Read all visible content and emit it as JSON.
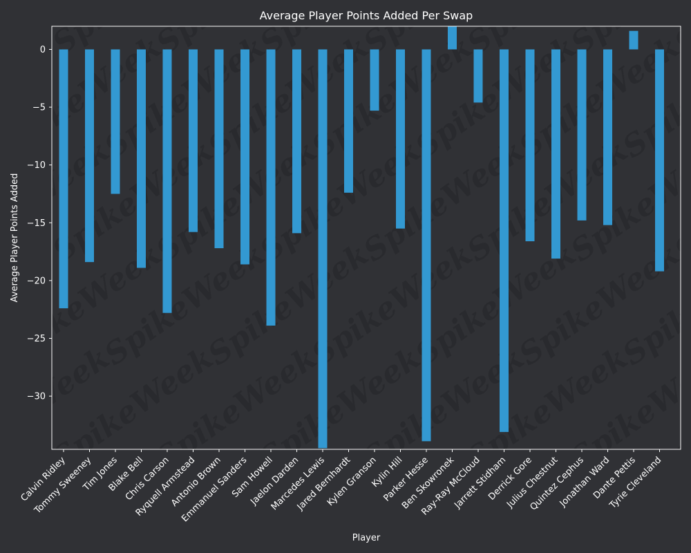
{
  "chart_data": {
    "type": "bar",
    "title": "Average Player Points Added Per Swap",
    "xlabel": "Player",
    "ylabel": "Average Player Points Added",
    "categories": [
      "Calvin Ridley",
      "Tommy Sweeney",
      "Tim Jones",
      "Blake Bell",
      "Chris Carson",
      "Ryquell Armstead",
      "Antonio Brown",
      "Emmanuel Sanders",
      "Sam Howell",
      "Jaelon Darden",
      "Marcedes Lewis",
      "Jared Bernhardt",
      "Kylen Granson",
      "Kylin Hill",
      "Parker Hesse",
      "Ben Skowronek",
      "Ray-Ray McCloud",
      "Jarrett Stidham",
      "Derrick Gore",
      "Julius Chestnut",
      "Quintez Cephus",
      "Jonathan Ward",
      "Dante Pettis",
      "Tyrie Cleveland"
    ],
    "values": [
      -22.4,
      -18.4,
      -12.5,
      -18.9,
      -22.8,
      -15.8,
      -17.2,
      -18.6,
      -23.9,
      -15.9,
      -34.5,
      -12.4,
      -5.3,
      -15.5,
      -33.9,
      2.0,
      -4.6,
      -33.1,
      -16.6,
      -18.1,
      -14.8,
      -15.2,
      1.6,
      -19.2
    ],
    "ylim": [
      -34.6,
      2.0
    ],
    "yticks": [
      0,
      -5,
      -10,
      -15,
      -20,
      -25,
      -30
    ],
    "ytick_labels": [
      "0",
      "−5",
      "−10",
      "−15",
      "−20",
      "−25",
      "−30"
    ],
    "grid": false,
    "bar_color": "#3399d2",
    "background_color": "#303135",
    "watermark": "SpikeWeek"
  }
}
